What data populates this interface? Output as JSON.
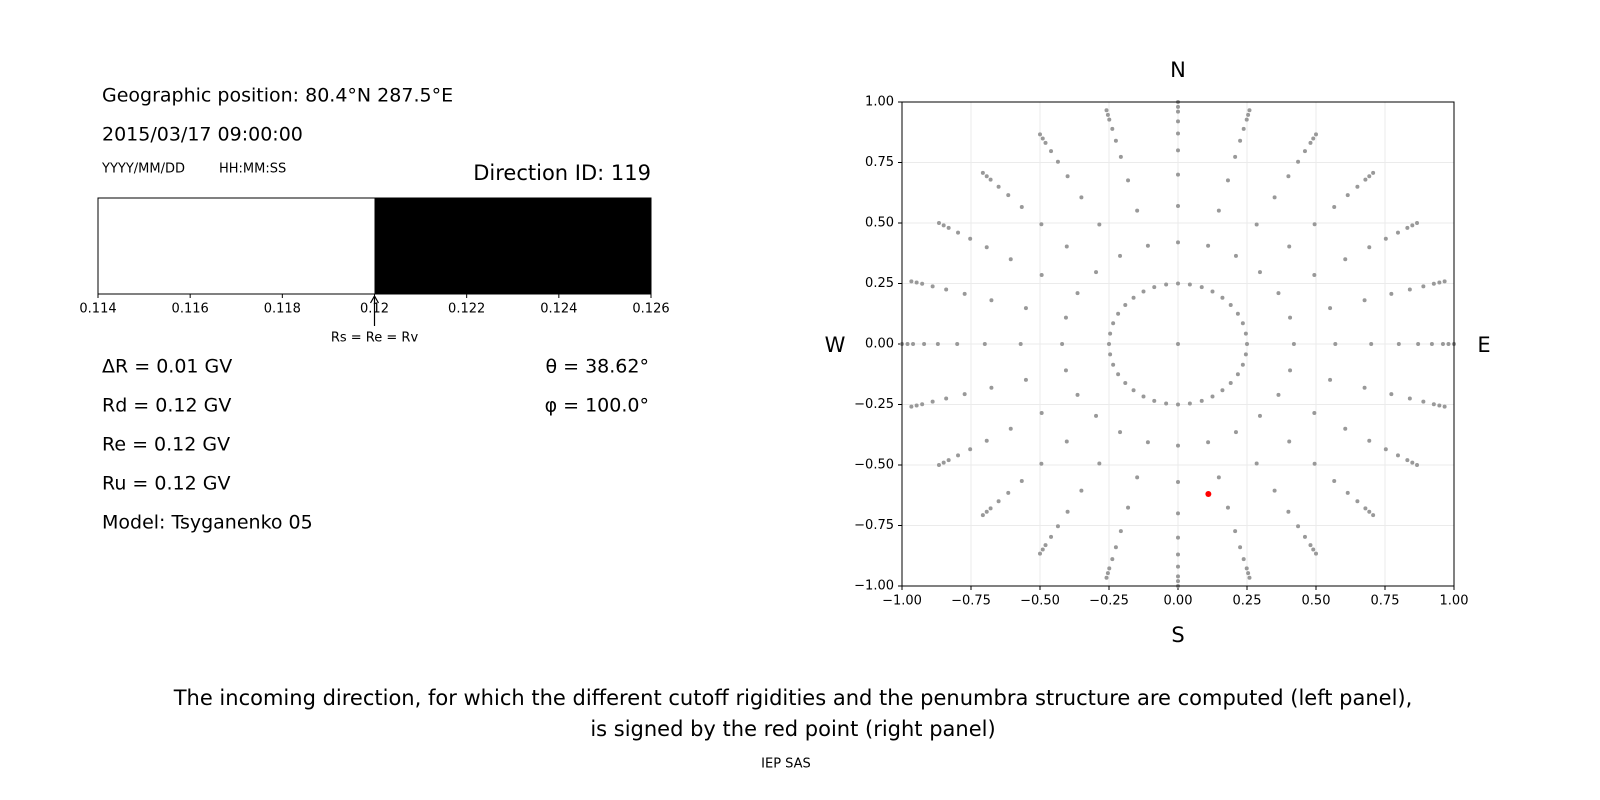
{
  "info": {
    "position": "Geographic position: 80.4°N 287.5°E",
    "datetime": "2015/03/17 09:00:00",
    "date_format": "YYYY/MM/DD",
    "time_format": "HH:MM:SS",
    "direction_id": "Direction ID: 119",
    "delta_r": "ΔR = 0.01 GV",
    "rd": "Rd = 0.12 GV",
    "re": "Re = 0.12 GV",
    "ru": "Ru = 0.12 GV",
    "model": "Model: Tsyganenko 05",
    "theta": "θ = 38.62°",
    "phi": "φ = 100.0°"
  },
  "chart_data": [
    {
      "type": "penumbra",
      "segments": [
        {
          "from": 0.114,
          "to": 0.12,
          "color": "#ffffff"
        },
        {
          "from": 0.12,
          "to": 0.126,
          "color": "#000000"
        }
      ],
      "xlim": [
        0.114,
        0.126
      ],
      "xticks": [
        0.114,
        0.116,
        0.118,
        0.12,
        0.122,
        0.124,
        0.126
      ],
      "annotation": {
        "text": "Rs = Re = Rv",
        "x": 0.12
      }
    },
    {
      "type": "scatter",
      "compass": {
        "north": "N",
        "south": "S",
        "west": "W",
        "east": "E"
      },
      "xlim": [
        -1,
        1
      ],
      "ylim": [
        -1,
        1
      ],
      "grid": true,
      "xticks": [
        {
          "value": -1,
          "label": "−1.00"
        },
        {
          "value": -0.75,
          "label": "−0.75"
        },
        {
          "value": -0.5,
          "label": "−0.50"
        },
        {
          "value": -0.25,
          "label": "−0.25"
        },
        {
          "value": 0,
          "label": "0.00"
        },
        {
          "value": 0.25,
          "label": "0.25"
        },
        {
          "value": 0.5,
          "label": "0.50"
        },
        {
          "value": 0.75,
          "label": "0.75"
        },
        {
          "value": 1,
          "label": "1.00"
        }
      ],
      "yticks": [
        {
          "value": -1,
          "label": "−1.00"
        },
        {
          "value": -0.75,
          "label": "−0.75"
        },
        {
          "value": -0.5,
          "label": "−0.50"
        },
        {
          "value": -0.25,
          "label": "−0.25"
        },
        {
          "value": 0,
          "label": "0.00"
        },
        {
          "value": 0.25,
          "label": "0.25"
        },
        {
          "value": 0.5,
          "label": "0.50"
        },
        {
          "value": 0.75,
          "label": "0.75"
        },
        {
          "value": 1,
          "label": "1.00"
        }
      ],
      "series": [
        {
          "color": "#999999",
          "size": 2,
          "x": [
            0,
            0.25,
            0.246,
            0.235,
            0.217,
            0.191,
            0.161,
            0.125,
            0.086,
            0.043,
            0,
            -0.043,
            -0.086,
            -0.125,
            -0.161,
            -0.191,
            -0.217,
            -0.235,
            -0.246,
            -0.25,
            -0.246,
            -0.235,
            -0.217,
            -0.191,
            -0.161,
            -0.125,
            -0.086,
            -0.043,
            0,
            0.043,
            0.086,
            0.125,
            0.161,
            0.191,
            0.217,
            0.235,
            0.246,
            0.42,
            0.406,
            0.364,
            0.297,
            0.21,
            0.109,
            0,
            -0.109,
            -0.21,
            -0.297,
            -0.364,
            -0.406,
            -0.42,
            -0.406,
            -0.364,
            -0.297,
            -0.21,
            -0.109,
            0,
            0.109,
            0.21,
            0.297,
            0.364,
            0.406,
            0.57,
            0.551,
            0.494,
            0.403,
            0.285,
            0.148,
            0,
            -0.148,
            -0.285,
            -0.403,
            -0.494,
            -0.551,
            -0.57,
            -0.551,
            -0.494,
            -0.403,
            -0.285,
            -0.148,
            0,
            0.148,
            0.285,
            0.403,
            0.494,
            0.551,
            0.7,
            0.676,
            0.606,
            0.495,
            0.35,
            0.181,
            0,
            -0.181,
            -0.35,
            -0.495,
            -0.606,
            -0.676,
            -0.7,
            -0.676,
            -0.606,
            -0.495,
            -0.35,
            -0.181,
            0,
            0.181,
            0.35,
            0.495,
            0.606,
            0.676,
            0.8,
            0.773,
            0.693,
            0.566,
            0.4,
            0.207,
            0,
            -0.207,
            -0.4,
            -0.566,
            -0.693,
            -0.773,
            -0.8,
            -0.773,
            -0.693,
            -0.566,
            -0.4,
            -0.207,
            0,
            0.207,
            0.4,
            0.566,
            0.693,
            0.773,
            0.87,
            0.84,
            0.753,
            0.615,
            0.435,
            0.225,
            0,
            -0.225,
            -0.435,
            -0.615,
            -0.753,
            -0.84,
            -0.87,
            -0.84,
            -0.753,
            -0.615,
            -0.435,
            -0.225,
            0,
            0.225,
            0.435,
            0.615,
            0.753,
            0.84,
            0.92,
            0.889,
            0.797,
            0.65,
            0.46,
            0.238,
            0,
            -0.238,
            -0.46,
            -0.65,
            -0.797,
            -0.889,
            -0.92,
            -0.889,
            -0.797,
            -0.65,
            -0.46,
            -0.238,
            0,
            0.238,
            0.46,
            0.65,
            0.797,
            0.889,
            0.96,
            0.927,
            0.831,
            0.679,
            0.48,
            0.249,
            0,
            -0.249,
            -0.48,
            -0.679,
            -0.831,
            -0.927,
            -0.96,
            -0.927,
            -0.831,
            -0.679,
            -0.48,
            -0.249,
            0,
            0.249,
            0.48,
            0.679,
            0.831,
            0.927,
            0.98,
            0.947,
            0.849,
            0.693,
            0.49,
            0.254,
            0,
            -0.254,
            -0.49,
            -0.693,
            -0.849,
            -0.947,
            -0.98,
            -0.947,
            -0.849,
            -0.693,
            -0.49,
            -0.254,
            0,
            0.254,
            0.49,
            0.693,
            0.849,
            0.947,
            1,
            0.966,
            0.866,
            0.707,
            0.5,
            0.259,
            0,
            -0.259,
            -0.5,
            -0.707,
            -0.866,
            -0.966,
            -1,
            -0.966,
            -0.866,
            -0.707,
            -0.5,
            -0.259,
            0,
            0.259,
            0.5,
            0.707,
            0.866,
            0.966
          ],
          "y": [
            0,
            0,
            0.043,
            0.086,
            0.125,
            0.161,
            0.191,
            0.217,
            0.235,
            0.246,
            0.25,
            0.246,
            0.235,
            0.217,
            0.191,
            0.161,
            0.125,
            0.086,
            0.043,
            0,
            -0.043,
            -0.086,
            -0.125,
            -0.161,
            -0.191,
            -0.217,
            -0.235,
            -0.246,
            -0.25,
            -0.246,
            -0.235,
            -0.217,
            -0.191,
            -0.161,
            -0.125,
            -0.086,
            -0.043,
            0,
            0.109,
            0.21,
            0.297,
            0.364,
            0.406,
            0.42,
            0.406,
            0.364,
            0.297,
            0.21,
            0.109,
            0,
            -0.109,
            -0.21,
            -0.297,
            -0.364,
            -0.406,
            -0.42,
            -0.406,
            -0.364,
            -0.297,
            -0.21,
            -0.109,
            0,
            0.148,
            0.285,
            0.403,
            0.494,
            0.551,
            0.57,
            0.551,
            0.494,
            0.403,
            0.285,
            0.148,
            0,
            -0.148,
            -0.285,
            -0.403,
            -0.494,
            -0.551,
            -0.57,
            -0.551,
            -0.494,
            -0.403,
            -0.285,
            -0.148,
            0,
            0.181,
            0.35,
            0.495,
            0.606,
            0.676,
            0.7,
            0.676,
            0.606,
            0.495,
            0.35,
            0.181,
            0,
            -0.181,
            -0.35,
            -0.495,
            -0.606,
            -0.676,
            -0.7,
            -0.676,
            -0.606,
            -0.495,
            -0.35,
            -0.181,
            0,
            0.207,
            0.4,
            0.566,
            0.693,
            0.773,
            0.8,
            0.773,
            0.693,
            0.566,
            0.4,
            0.207,
            0,
            -0.207,
            -0.4,
            -0.566,
            -0.693,
            -0.773,
            -0.8,
            -0.773,
            -0.693,
            -0.566,
            -0.4,
            -0.207,
            0,
            0.225,
            0.435,
            0.615,
            0.753,
            0.84,
            0.87,
            0.84,
            0.753,
            0.615,
            0.435,
            0.225,
            0,
            -0.225,
            -0.435,
            -0.615,
            -0.753,
            -0.84,
            -0.87,
            -0.84,
            -0.753,
            -0.615,
            -0.435,
            -0.225,
            0,
            0.238,
            0.46,
            0.65,
            0.797,
            0.889,
            0.92,
            0.889,
            0.797,
            0.65,
            0.46,
            0.238,
            0,
            -0.238,
            -0.46,
            -0.65,
            -0.797,
            -0.889,
            -0.92,
            -0.889,
            -0.797,
            -0.65,
            -0.46,
            -0.238,
            0,
            0.249,
            0.48,
            0.679,
            0.831,
            0.927,
            0.96,
            0.927,
            0.831,
            0.679,
            0.48,
            0.249,
            0,
            -0.249,
            -0.48,
            -0.679,
            -0.831,
            -0.927,
            -0.96,
            -0.927,
            -0.831,
            -0.679,
            -0.48,
            -0.249,
            0,
            0.254,
            0.49,
            0.693,
            0.849,
            0.947,
            0.98,
            0.947,
            0.849,
            0.693,
            0.49,
            0.254,
            0,
            -0.254,
            -0.49,
            -0.693,
            -0.849,
            -0.947,
            -0.98,
            -0.947,
            -0.849,
            -0.693,
            -0.49,
            -0.254,
            0,
            0.259,
            0.5,
            0.707,
            0.866,
            0.966,
            1,
            0.966,
            0.866,
            0.707,
            0.5,
            0.259,
            0,
            -0.259,
            -0.5,
            -0.707,
            -0.866,
            -0.966,
            -1,
            -0.966,
            -0.866,
            -0.707,
            -0.5,
            -0.259
          ]
        },
        {
          "color": "#ff0000",
          "size": 3,
          "x": [
            0.11
          ],
          "y": [
            -0.62
          ]
        }
      ]
    }
  ],
  "caption": [
    "The incoming direction, for which the different cutoff rigidities and the penumbra structure are computed (left panel),",
    "is signed by the red point (right panel)"
  ],
  "footer": "IEP SAS"
}
